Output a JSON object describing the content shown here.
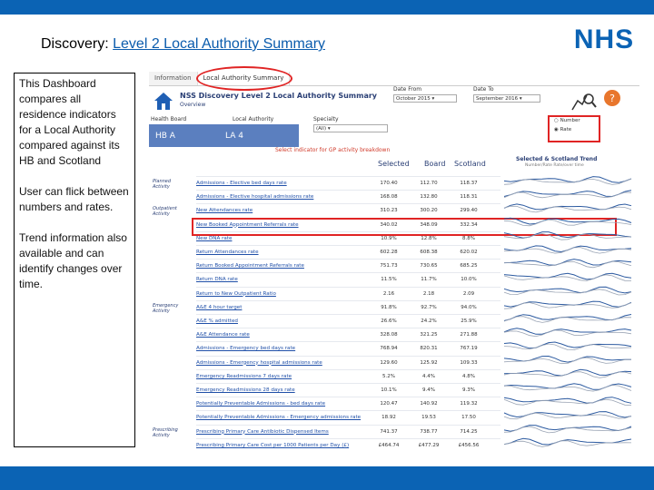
{
  "slide": {
    "title_prefix": "Discovery: ",
    "title_link": "Level 2 Local Authority Summary",
    "logo": "NHS",
    "note_paragraphs": [
      "This Dashboard compares all residence indicators for a Local Authority compared against its HB and Scotland",
      "User can flick between numbers and rates.",
      "Trend information also available and can identify changes over time."
    ]
  },
  "dashboard": {
    "tabs": [
      "Information",
      "Local Authority Summary"
    ],
    "title": "NSS Discovery Level 2 Local Authority Summary",
    "subtitle": "Overview",
    "filters": {
      "health_board_label": "Health Board",
      "local_authority_label": "Local Authority",
      "specialty_label": "Specialty",
      "specialty_value": "(All)",
      "date_from_label": "Date From",
      "date_from_value": "October 2015",
      "date_to_label": "Date To",
      "date_to_value": "September 2016"
    },
    "hb_value": "HB A",
    "la_value": "LA 4",
    "select_indicator_text": "Select indicator for GP activity breakdown",
    "radio": {
      "number_label": "Number",
      "rate_label": "Rate",
      "selected": "Rate"
    },
    "columns": {
      "selected": "Selected",
      "board": "Board",
      "scotland": "Scotland"
    },
    "trend_header": "Selected & Scotland Trend",
    "trend_sub": "Number/Rate Rate/over time",
    "sections": [
      {
        "name": "Planned Activity",
        "row_start": 0
      },
      {
        "name": "Outpatient Activity",
        "row_start": 2
      },
      {
        "name": "Emergency Activity",
        "row_start": 9
      },
      {
        "name": "Prescribing Activity",
        "row_start": 18
      }
    ],
    "rows": [
      {
        "indicator": "Admissions - Elective bed days rate",
        "selected": "170.40",
        "board": "112.70",
        "scotland": "118.37"
      },
      {
        "indicator": "Admissions - Elective hospital admissions rate",
        "selected": "168.08",
        "board": "132.80",
        "scotland": "118.31"
      },
      {
        "indicator": "New Attendances rate",
        "selected": "310.23",
        "board": "300.20",
        "scotland": "299.40"
      },
      {
        "indicator": "New Booked Appointment Referrals rate",
        "selected": "340.02",
        "board": "348.09",
        "scotland": "332.34"
      },
      {
        "indicator": "New DNA rate",
        "selected": "10.9%",
        "board": "12.8%",
        "scotland": "8.8%"
      },
      {
        "indicator": "Return Attendances rate",
        "selected": "602.28",
        "board": "608.38",
        "scotland": "620.02"
      },
      {
        "indicator": "Return Booked Appointment Referrals rate",
        "selected": "751.73",
        "board": "730.65",
        "scotland": "685.25"
      },
      {
        "indicator": "Return DNA rate",
        "selected": "11.5%",
        "board": "11.7%",
        "scotland": "10.0%"
      },
      {
        "indicator": "Return to New Outpatient Ratio",
        "selected": "2.16",
        "board": "2.18",
        "scotland": "2.09"
      },
      {
        "indicator": "A&E 4 hour target",
        "selected": "91.8%",
        "board": "92.7%",
        "scotland": "94.0%"
      },
      {
        "indicator": "A&E % admitted",
        "selected": "26.6%",
        "board": "24.2%",
        "scotland": "25.9%"
      },
      {
        "indicator": "A&E Attendance rate",
        "selected": "328.08",
        "board": "321.25",
        "scotland": "271.88"
      },
      {
        "indicator": "Admissions - Emergency bed days rate",
        "selected": "768.94",
        "board": "820.31",
        "scotland": "767.19"
      },
      {
        "indicator": "Admissions - Emergency hospital admissions rate",
        "selected": "129.60",
        "board": "125.92",
        "scotland": "109.33"
      },
      {
        "indicator": "Emergency Readmissions 7 days rate",
        "selected": "5.2%",
        "board": "4.4%",
        "scotland": "4.8%"
      },
      {
        "indicator": "Emergency Readmissions 28 days rate",
        "selected": "10.1%",
        "board": "9.4%",
        "scotland": "9.3%"
      },
      {
        "indicator": "Potentially Preventable Admissions - bed days rate",
        "selected": "120.47",
        "board": "140.92",
        "scotland": "119.32"
      },
      {
        "indicator": "Potentially Preventable Admissions - Emergency admissions rate",
        "selected": "18.92",
        "board": "19.53",
        "scotland": "17.50"
      },
      {
        "indicator": "Prescribing Primary Care Antibiotic Dispensed Items",
        "selected": "741.37",
        "board": "738.77",
        "scotland": "714.25"
      },
      {
        "indicator": "Prescribing Primary Care Cost per 1000 Patients per Day (£)",
        "selected": "£464.74",
        "board": "£477.29",
        "scotland": "£456.56"
      }
    ],
    "colors": {
      "header_blue": "#5b7fbf",
      "highlight_red": "#e02424",
      "nhs_blue": "#0b63b4"
    }
  }
}
